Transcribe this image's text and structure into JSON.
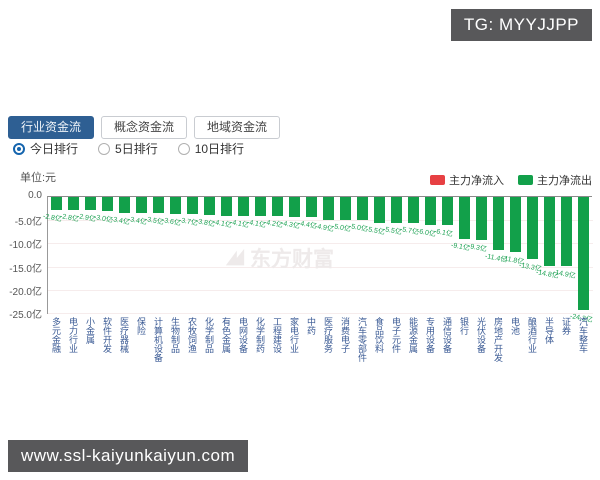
{
  "overlay": {
    "tg_badge": "TG: MYYJJPP",
    "url_badge": "www.ssl-kaiyunkaiyun.com"
  },
  "tabs": [
    {
      "label": "行业资金流",
      "active": true
    },
    {
      "label": "概念资金流",
      "active": false
    },
    {
      "label": "地域资金流",
      "active": false
    }
  ],
  "rank_options": [
    {
      "label": "今日排行",
      "selected": true
    },
    {
      "label": "5日排行",
      "selected": false
    },
    {
      "label": "10日排行",
      "selected": false
    }
  ],
  "chart": {
    "unit_label": "单位:元",
    "watermark": "东方财富",
    "y_ticks": [
      "0.0",
      "-5.0亿",
      "-10.0亿",
      "-15.0亿",
      "-20.0亿",
      "-25.0亿"
    ],
    "legend": [
      {
        "label": "主力净流入",
        "color": "#e74043"
      },
      {
        "label": "主力净流出",
        "color": "#12a04a"
      }
    ]
  },
  "colors": {
    "bar_green": "#12a04a",
    "legend_red": "#e74043",
    "active_tab_blue": "#2e5f93",
    "category_label_blue": "#3a5a94",
    "badge_gray": "#58585a"
  },
  "chart_data": {
    "type": "bar",
    "title": "行业资金流 今日排行 主力净流出",
    "xlabel": "",
    "ylabel": "单位:元",
    "ylim": [
      -25,
      0
    ],
    "grid": true,
    "legend_position": "top-right",
    "series_name": "主力净流出",
    "categories": [
      "多元金融",
      "电力行业",
      "小金属",
      "软件开发",
      "医疗器械",
      "保险",
      "计算机设备",
      "生物制品",
      "农牧饲渔",
      "化学制品",
      "有色金属",
      "电网设备",
      "化学制药",
      "工程建设",
      "家电行业",
      "中药",
      "医疗服务",
      "消费电子",
      "汽车零部件",
      "食品饮料",
      "电子元件",
      "能源金属",
      "专用设备",
      "通信设备",
      "银行",
      "光伏设备",
      "房地产开发",
      "电池",
      "酿酒行业",
      "半导体",
      "证券",
      "汽车整车"
    ],
    "values": [
      -2.8,
      -2.8,
      -2.9,
      -3.0,
      -3.4,
      -3.4,
      -3.5,
      -3.6,
      -3.7,
      -3.8,
      -4.1,
      -4.1,
      -4.1,
      -4.2,
      -4.3,
      -4.4,
      -4.9,
      -5.0,
      -5.0,
      -5.5,
      -5.5,
      -5.7,
      -6.0,
      -6.1,
      -9.1,
      -9.3,
      -11.4,
      -11.8,
      -13.3,
      -14.8,
      -14.9,
      -24.3
    ],
    "value_labels": [
      "-2.8亿",
      "-2.8亿",
      "-2.9亿",
      "-3.0亿",
      "-3.4亿",
      "-3.4亿",
      "-3.5亿",
      "-3.6亿",
      "-3.7亿",
      "-3.8亿",
      "-4.1亿",
      "-4.1亿",
      "-4.1亿",
      "-4.2亿",
      "-4.3亿",
      "-4.4亿",
      "-4.9亿",
      "-5.0亿",
      "-5.0亿",
      "-5.5亿",
      "-5.5亿",
      "-5.7亿",
      "-6.0亿",
      "-6.1亿",
      "-9.1亿",
      "-9.3亿",
      "-11.4亿",
      "-11.8亿",
      "-13.3亿",
      "-14.8亿",
      "-14.9亿",
      "-24.3亿"
    ]
  }
}
